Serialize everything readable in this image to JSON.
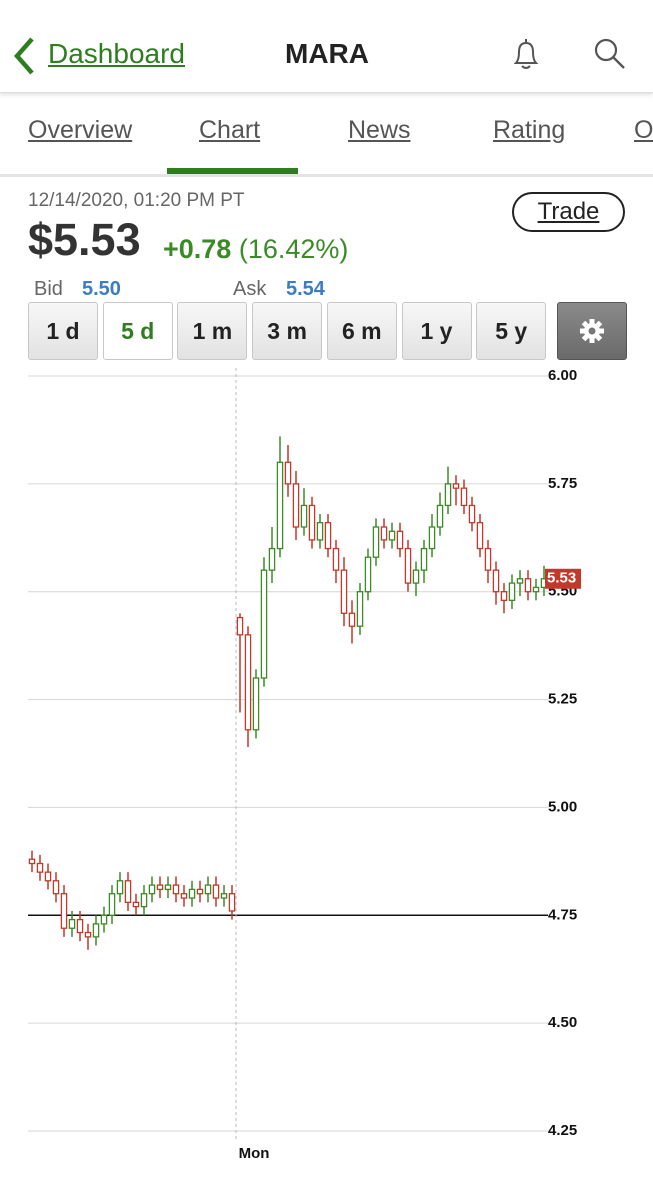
{
  "header": {
    "back": "Dashboard",
    "title": "MARA"
  },
  "tabs": [
    "Overview",
    "Chart",
    "News",
    "Rating",
    "O"
  ],
  "active_tab": 1,
  "quote": {
    "timestamp": "12/14/2020, 01:20 PM PT",
    "price": "$5.53",
    "change": "+0.78",
    "change_pct": "(16.42%)",
    "trade": "Trade",
    "bid_label": "Bid",
    "bid": "5.50",
    "ask_label": "Ask",
    "ask": "5.54"
  },
  "ranges": [
    "1 d",
    "5 d",
    "1 m",
    "3 m",
    "6 m",
    "1 y",
    "5 y"
  ],
  "selected_range": 1,
  "chart_data": {
    "type": "candlestick",
    "categories": [
      null,
      null,
      null,
      null,
      null,
      null,
      null,
      null,
      null,
      null,
      null,
      null,
      null,
      null,
      null,
      null,
      null,
      null,
      null,
      null,
      null,
      null,
      null,
      null,
      null,
      null,
      "Mon",
      null,
      null,
      null,
      null,
      null,
      null,
      null,
      null,
      null,
      null,
      null,
      null,
      null,
      null,
      null,
      null,
      null,
      null,
      null,
      null,
      null,
      null,
      null,
      null,
      null,
      null,
      null,
      null,
      null,
      null,
      null,
      null,
      null,
      null,
      null,
      null,
      null,
      null
    ],
    "open": [
      4.88,
      4.87,
      4.85,
      4.83,
      4.8,
      4.72,
      4.74,
      4.71,
      4.7,
      4.73,
      4.75,
      4.8,
      4.83,
      4.78,
      4.77,
      4.8,
      4.82,
      4.81,
      4.82,
      4.8,
      4.79,
      4.81,
      4.8,
      4.82,
      4.79,
      4.8,
      5.44,
      5.4,
      5.18,
      5.3,
      5.55,
      5.6,
      5.8,
      5.75,
      5.65,
      5.7,
      5.62,
      5.66,
      5.6,
      5.55,
      5.45,
      5.42,
      5.5,
      5.58,
      5.65,
      5.62,
      5.64,
      5.6,
      5.52,
      5.55,
      5.6,
      5.65,
      5.7,
      5.75,
      5.74,
      5.7,
      5.66,
      5.6,
      5.55,
      5.5,
      5.48,
      5.52,
      5.53,
      5.5,
      5.51
    ],
    "high": [
      4.9,
      4.89,
      4.87,
      4.85,
      4.82,
      4.76,
      4.76,
      4.73,
      4.75,
      4.77,
      4.82,
      4.85,
      4.85,
      4.8,
      4.82,
      4.84,
      4.84,
      4.84,
      4.84,
      4.82,
      4.83,
      4.83,
      4.84,
      4.84,
      4.82,
      4.82,
      5.45,
      5.42,
      5.32,
      5.58,
      5.65,
      5.86,
      5.84,
      5.78,
      5.74,
      5.72,
      5.68,
      5.68,
      5.62,
      5.58,
      5.48,
      5.52,
      5.6,
      5.67,
      5.67,
      5.66,
      5.66,
      5.62,
      5.57,
      5.62,
      5.68,
      5.73,
      5.79,
      5.77,
      5.76,
      5.72,
      5.68,
      5.62,
      5.57,
      5.52,
      5.54,
      5.55,
      5.55,
      5.53,
      5.56
    ],
    "low": [
      4.85,
      4.83,
      4.81,
      4.78,
      4.7,
      4.7,
      4.69,
      4.67,
      4.68,
      4.71,
      4.73,
      4.78,
      4.76,
      4.75,
      4.75,
      4.78,
      4.79,
      4.79,
      4.78,
      4.77,
      4.77,
      4.78,
      4.78,
      4.77,
      4.77,
      4.74,
      5.22,
      5.14,
      5.16,
      5.28,
      5.52,
      5.58,
      5.72,
      5.62,
      5.63,
      5.6,
      5.6,
      5.58,
      5.52,
      5.42,
      5.38,
      5.4,
      5.48,
      5.56,
      5.6,
      5.6,
      5.58,
      5.5,
      5.49,
      5.52,
      5.58,
      5.63,
      5.68,
      5.7,
      5.68,
      5.64,
      5.58,
      5.52,
      5.47,
      5.45,
      5.46,
      5.49,
      5.48,
      5.48,
      5.49
    ],
    "close": [
      4.87,
      4.85,
      4.83,
      4.8,
      4.72,
      4.74,
      4.71,
      4.7,
      4.73,
      4.75,
      4.8,
      4.83,
      4.78,
      4.77,
      4.8,
      4.82,
      4.81,
      4.82,
      4.8,
      4.79,
      4.81,
      4.8,
      4.82,
      4.79,
      4.8,
      4.76,
      5.4,
      5.18,
      5.3,
      5.55,
      5.6,
      5.8,
      5.75,
      5.65,
      5.7,
      5.62,
      5.66,
      5.6,
      5.55,
      5.45,
      5.42,
      5.5,
      5.58,
      5.65,
      5.62,
      5.64,
      5.6,
      5.52,
      5.55,
      5.6,
      5.65,
      5.7,
      5.75,
      5.74,
      5.7,
      5.66,
      5.6,
      5.55,
      5.5,
      5.48,
      5.52,
      5.53,
      5.5,
      5.51,
      5.53
    ],
    "up_color": "#3b8a27",
    "down_color": "#c0392b",
    "ylim": [
      4.25,
      6.0
    ],
    "yticks": [
      {
        "value": 4.25,
        "label": "4.25"
      },
      {
        "value": 4.5,
        "label": "4.50"
      },
      {
        "value": 4.75,
        "label": "4.75"
      },
      {
        "value": 5,
        "label": "5.00"
      },
      {
        "value": 5.25,
        "label": "5.25"
      },
      {
        "value": 5.5,
        "label": "5.50"
      },
      {
        "value": 5.75,
        "label": "5.75"
      },
      {
        "value": 6,
        "label": "6.00"
      }
    ],
    "reference_line": 4.75,
    "last_price": 5.53,
    "grid": true
  }
}
